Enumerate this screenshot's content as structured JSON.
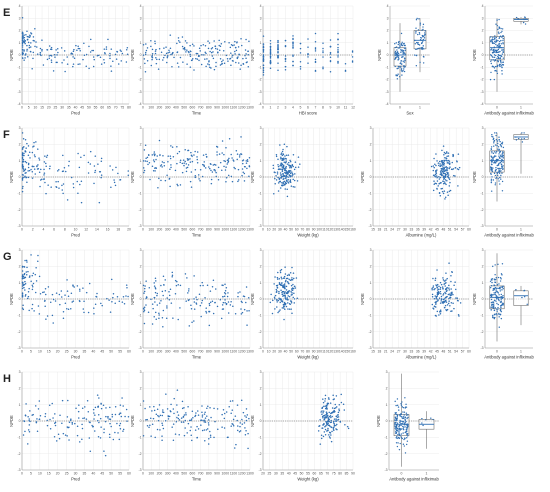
{
  "figure": {
    "rows": [
      "E",
      "F",
      "G",
      "H"
    ]
  },
  "colors": {
    "point": "#2f6fb3",
    "grid": "#e6e6e6",
    "axis": "#9a9a9a",
    "zero_line": "#555555",
    "box_fill": "#ffffff",
    "box_stroke": "#555555",
    "median": "#2f6fb3"
  },
  "chart_data": [
    {
      "type": "scatter",
      "row": "E",
      "col": 0,
      "title": "",
      "xlabel": "Pred",
      "ylabel": "NPDE",
      "xlim": [
        0,
        80
      ],
      "ylim": [
        -4,
        4
      ],
      "xticks": [
        "0",
        "5",
        "10",
        "15",
        "20",
        "25",
        "30",
        "35",
        "40",
        "45",
        "50",
        "55",
        "60",
        "65",
        "70",
        "75",
        "80"
      ],
      "yticks": [
        "-4",
        "-3",
        "-2",
        "-1",
        "0",
        "1",
        "2",
        "3",
        "4"
      ],
      "pattern": "decay",
      "n": 180,
      "seed": 11
    },
    {
      "type": "scatter",
      "row": "E",
      "col": 1,
      "title": "",
      "xlabel": "Time",
      "ylabel": "NPDE",
      "xlim": [
        0,
        1300
      ],
      "ylim": [
        -4,
        4
      ],
      "xticks": [
        "0",
        "100",
        "200",
        "300",
        "400",
        "500",
        "600",
        "700",
        "800",
        "900",
        "1000",
        "1100",
        "1200",
        "1300"
      ],
      "yticks": [
        "-4",
        "-3",
        "-2",
        "-1",
        "0",
        "1",
        "2",
        "3",
        "4"
      ],
      "pattern": "uniform",
      "n": 200,
      "seed": 12
    },
    {
      "type": "scatter",
      "row": "E",
      "col": 2,
      "title": "",
      "xlabel": "HBI score",
      "ylabel": "NPDE",
      "xlim": [
        0,
        12
      ],
      "ylim": [
        -4,
        4
      ],
      "xticks": [
        "0",
        "1",
        "2",
        "3",
        "4",
        "5",
        "6",
        "7",
        "8",
        "9",
        "10",
        "11",
        "12"
      ],
      "yticks": [
        "-4",
        "-3",
        "-2",
        "-1",
        "0",
        "1",
        "2",
        "3",
        "4"
      ],
      "pattern": "discrete",
      "n": 170,
      "seed": 13
    },
    {
      "type": "box",
      "row": "E",
      "col": 3,
      "title": "",
      "xlabel": "Sex",
      "ylabel": "NPDE",
      "categories": [
        "0",
        "1"
      ],
      "ylim": [
        -4,
        4
      ],
      "yticks": [
        "-4",
        "-3",
        "-2",
        "-1",
        "0",
        "1",
        "2",
        "3",
        "4"
      ],
      "boxes": [
        {
          "q1": -0.9,
          "median": 0.0,
          "q3": 0.6,
          "lo": -3.0,
          "hi": 2.6,
          "n": 100
        },
        {
          "q1": 0.5,
          "median": 1.2,
          "q3": 2.0,
          "lo": -1.4,
          "hi": 3.0,
          "n": 60
        }
      ],
      "seed": 14
    },
    {
      "type": "box",
      "row": "E",
      "col": 4,
      "title": "",
      "xlabel": "Antibody against infliximab",
      "ylabel": "NPDE",
      "categories": [
        "0",
        "1"
      ],
      "ylim": [
        -4,
        4
      ],
      "yticks": [
        "-4",
        "-3",
        "-2",
        "-1",
        "0",
        "1",
        "2",
        "3",
        "4"
      ],
      "boxes": [
        {
          "q1": -0.4,
          "median": 0.6,
          "q3": 1.5,
          "lo": -3.0,
          "hi": 3.0,
          "n": 160
        },
        {
          "q1": 2.75,
          "median": 2.9,
          "q3": 3.0,
          "lo": 2.5,
          "hi": 3.1,
          "n": 8
        }
      ],
      "seed": 15
    },
    {
      "type": "scatter",
      "row": "F",
      "col": 0,
      "title": "",
      "xlabel": "Pred",
      "ylabel": "NPDE",
      "xlim": [
        0,
        20
      ],
      "ylim": [
        -3,
        3
      ],
      "xticks": [
        "0",
        "2",
        "4",
        "6",
        "8",
        "10",
        "12",
        "14",
        "16",
        "18",
        "20"
      ],
      "yticks": [
        "-3",
        "-2",
        "-1",
        "0",
        "1",
        "2",
        "3"
      ],
      "pattern": "decay",
      "n": 170,
      "seed": 21
    },
    {
      "type": "scatter",
      "row": "F",
      "col": 1,
      "title": "",
      "xlabel": "Time",
      "ylabel": "NPDE",
      "xlim": [
        0,
        1300
      ],
      "ylim": [
        -3,
        3
      ],
      "xticks": [
        "0",
        "100",
        "200",
        "300",
        "400",
        "500",
        "600",
        "700",
        "800",
        "900",
        "1000",
        "1100",
        "1200",
        "1300"
      ],
      "yticks": [
        "-3",
        "-2",
        "-1",
        "0",
        "1",
        "2",
        "3"
      ],
      "pattern": "uniform_high",
      "n": 200,
      "seed": 22
    },
    {
      "type": "scatter",
      "row": "F",
      "col": 2,
      "title": "",
      "xlabel": "Weight (kg)",
      "ylabel": "NPDE",
      "xlim": [
        0,
        160
      ],
      "ylim": [
        -3,
        3
      ],
      "xticks": [
        "0",
        "10",
        "20",
        "30",
        "40",
        "50",
        "60",
        "70",
        "80",
        "90",
        "100",
        "110",
        "120",
        "130",
        "140",
        "150",
        "160"
      ],
      "yticks": [
        "-3",
        "-2",
        "-1",
        "0",
        "1",
        "2",
        "3"
      ],
      "pattern": "cluster_mid",
      "n": 190,
      "seed": 23
    },
    {
      "type": "scatter",
      "row": "F",
      "col": 3,
      "title": "",
      "xlabel": "Albumine (mg/L)",
      "ylabel": "NPDE",
      "xlim": [
        15,
        60
      ],
      "ylim": [
        -3,
        3
      ],
      "xticks": [
        "15",
        "18",
        "21",
        "24",
        "27",
        "30",
        "33",
        "36",
        "39",
        "42",
        "45",
        "48",
        "51",
        "54",
        "57",
        "60"
      ],
      "yticks": [
        "-3",
        "-2",
        "-1",
        "0",
        "1",
        "2",
        "3"
      ],
      "pattern": "cluster_right",
      "n": 180,
      "seed": 24
    },
    {
      "type": "box",
      "row": "F",
      "col": 4,
      "title": "",
      "xlabel": "Antibody against infliximab",
      "ylabel": "NPDE",
      "categories": [
        "0",
        "1"
      ],
      "ylim": [
        -3,
        3
      ],
      "yticks": [
        "-3",
        "-2",
        "-1",
        "0",
        "1",
        "2",
        "3"
      ],
      "boxes": [
        {
          "q1": 0.3,
          "median": 1.0,
          "q3": 1.6,
          "lo": -1.5,
          "hi": 2.7,
          "n": 160
        },
        {
          "q1": 2.3,
          "median": 2.45,
          "q3": 2.6,
          "lo": 0.2,
          "hi": 2.7,
          "n": 8
        }
      ],
      "seed": 25
    },
    {
      "type": "scatter",
      "row": "G",
      "col": 0,
      "title": "",
      "xlabel": "Pred",
      "ylabel": "NPDE",
      "xlim": [
        0,
        60
      ],
      "ylim": [
        -3,
        3
      ],
      "xticks": [
        "0",
        "5",
        "10",
        "15",
        "20",
        "25",
        "30",
        "35",
        "40",
        "45",
        "50",
        "55",
        "60"
      ],
      "yticks": [
        "-3",
        "-2",
        "-1",
        "0",
        "1",
        "2",
        "3"
      ],
      "pattern": "decay",
      "n": 150,
      "seed": 31
    },
    {
      "type": "scatter",
      "row": "G",
      "col": 1,
      "title": "",
      "xlabel": "Time",
      "ylabel": "NPDE",
      "xlim": [
        0,
        1300
      ],
      "ylim": [
        -3,
        3
      ],
      "xticks": [
        "0",
        "100",
        "200",
        "300",
        "400",
        "500",
        "600",
        "700",
        "800",
        "900",
        "1000",
        "1100",
        "1200",
        "1300"
      ],
      "yticks": [
        "-3",
        "-2",
        "-1",
        "0",
        "1",
        "2",
        "3"
      ],
      "pattern": "uniform",
      "n": 170,
      "seed": 32
    },
    {
      "type": "scatter",
      "row": "G",
      "col": 2,
      "title": "",
      "xlabel": "Weight (kg)",
      "ylabel": "NPDE",
      "xlim": [
        0,
        160
      ],
      "ylim": [
        -3,
        3
      ],
      "xticks": [
        "0",
        "10",
        "20",
        "30",
        "40",
        "50",
        "60",
        "70",
        "80",
        "90",
        "100",
        "110",
        "120",
        "130",
        "140",
        "150",
        "160"
      ],
      "yticks": [
        "-3",
        "-2",
        "-1",
        "0",
        "1",
        "2",
        "3"
      ],
      "pattern": "cluster_mid",
      "n": 170,
      "seed": 33
    },
    {
      "type": "scatter",
      "row": "G",
      "col": 3,
      "title": "",
      "xlabel": "Albumine (mg/L)",
      "ylabel": "NPDE",
      "xlim": [
        15,
        60
      ],
      "ylim": [
        -3,
        3
      ],
      "xticks": [
        "15",
        "18",
        "21",
        "24",
        "27",
        "30",
        "33",
        "36",
        "39",
        "42",
        "45",
        "48",
        "51",
        "54",
        "57",
        "60"
      ],
      "yticks": [
        "-3",
        "-2",
        "-1",
        "0",
        "1",
        "2",
        "3"
      ],
      "pattern": "cluster_right",
      "n": 160,
      "seed": 34
    },
    {
      "type": "box",
      "row": "G",
      "col": 4,
      "title": "",
      "xlabel": "Antibody against infliximab",
      "ylabel": "NPDE",
      "categories": [
        "0",
        "1"
      ],
      "ylim": [
        -3,
        3
      ],
      "yticks": [
        "-3",
        "-2",
        "-1",
        "0",
        "1",
        "2",
        "3"
      ],
      "boxes": [
        {
          "q1": -0.6,
          "median": 0.1,
          "q3": 0.8,
          "lo": -2.6,
          "hi": 2.8,
          "n": 150
        },
        {
          "q1": -0.4,
          "median": 0.2,
          "q3": 0.5,
          "lo": -1.6,
          "hi": 0.8,
          "n": 6
        }
      ],
      "seed": 35
    },
    {
      "type": "scatter",
      "row": "H",
      "col": 0,
      "title": "",
      "xlabel": "Pred",
      "ylabel": "NPDE",
      "xlim": [
        0,
        60
      ],
      "ylim": [
        -3,
        3
      ],
      "xticks": [
        "0",
        "5",
        "10",
        "15",
        "20",
        "25",
        "30",
        "35",
        "40",
        "45",
        "50",
        "55",
        "60"
      ],
      "yticks": [
        "-3",
        "-2",
        "-1",
        "0",
        "1",
        "2",
        "3"
      ],
      "pattern": "uniform",
      "n": 150,
      "seed": 41
    },
    {
      "type": "scatter",
      "row": "H",
      "col": 1,
      "title": "",
      "xlabel": "Time",
      "ylabel": "NPDE",
      "xlim": [
        0,
        1300
      ],
      "ylim": [
        -3,
        3
      ],
      "xticks": [
        "0",
        "100",
        "200",
        "300",
        "400",
        "500",
        "600",
        "700",
        "800",
        "900",
        "1000",
        "1100",
        "1200",
        "1300"
      ],
      "yticks": [
        "-3",
        "-2",
        "-1",
        "0",
        "1",
        "2",
        "3"
      ],
      "pattern": "uniform",
      "n": 180,
      "seed": 42
    },
    {
      "type": "scatter",
      "row": "H",
      "col": 2,
      "title": "",
      "xlabel": "Weight (kg)",
      "ylabel": "NPDE",
      "xlim": [
        20,
        90
      ],
      "ylim": [
        -3,
        3
      ],
      "xticks": [
        "20",
        "25",
        "30",
        "35",
        "40",
        "45",
        "50",
        "55",
        "60",
        "65",
        "70",
        "75",
        "80",
        "85",
        "90"
      ],
      "yticks": [
        "-3",
        "-2",
        "-1",
        "0",
        "1",
        "2",
        "3"
      ],
      "pattern": "cluster_right",
      "n": 170,
      "seed": 43
    },
    {
      "type": "box",
      "row": "H",
      "col": 3,
      "title": "",
      "xlabel": "Antibody against infliximab",
      "ylabel": "NPDE",
      "categories": [
        "0",
        "1"
      ],
      "ylim": [
        -3,
        3
      ],
      "yticks": [
        "-3",
        "-2",
        "-1",
        "0",
        "1",
        "2",
        "3"
      ],
      "boxes": [
        {
          "q1": -0.9,
          "median": -0.2,
          "q3": 0.4,
          "lo": -2.8,
          "hi": 2.9,
          "n": 160
        },
        {
          "q1": -0.5,
          "median": -0.2,
          "q3": 0.1,
          "lo": -1.7,
          "hi": 0.6,
          "n": 6
        }
      ],
      "seed": 44
    }
  ]
}
